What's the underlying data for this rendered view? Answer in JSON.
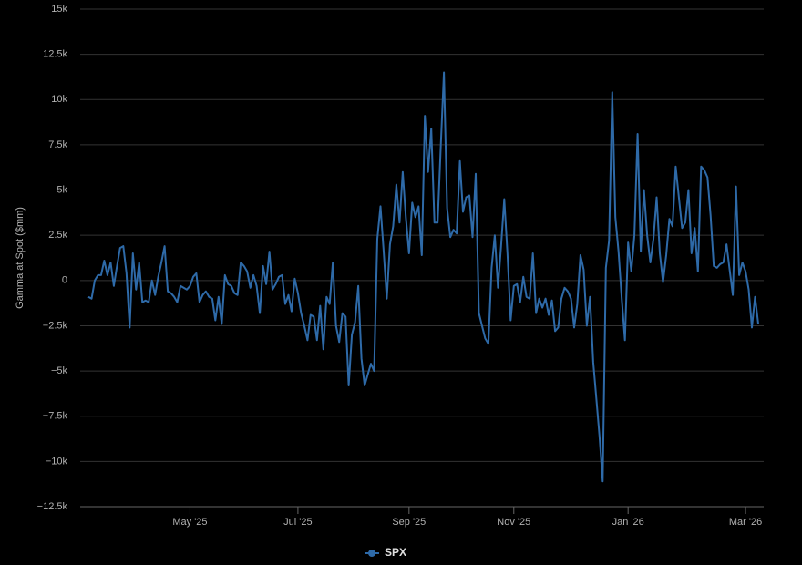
{
  "chart_data": {
    "type": "line",
    "y_label": "Gamma at Spot ($mm)",
    "categories": [
      null,
      null,
      null,
      null,
      null,
      null,
      null,
      null,
      null,
      null,
      null,
      null,
      null,
      null,
      null,
      null,
      null,
      null,
      null,
      null,
      null,
      null,
      null,
      null,
      null,
      null,
      null,
      null,
      null,
      null,
      null,
      null,
      "May '25",
      null,
      null,
      null,
      null,
      null,
      null,
      null,
      null,
      null,
      null,
      null,
      null,
      null,
      null,
      null,
      null,
      null,
      null,
      null,
      null,
      null,
      null,
      null,
      null,
      null,
      null,
      null,
      null,
      null,
      null,
      null,
      null,
      null,
      "Jul '25",
      null,
      null,
      null,
      null,
      null,
      null,
      null,
      null,
      null,
      null,
      null,
      null,
      null,
      null,
      null,
      null,
      null,
      null,
      null,
      null,
      null,
      null,
      null,
      null,
      null,
      null,
      null,
      null,
      null,
      null,
      null,
      null,
      null,
      null,
      "Sep '25",
      null,
      null,
      null,
      null,
      null,
      null,
      null,
      null,
      null,
      null,
      null,
      null,
      null,
      null,
      null,
      null,
      null,
      null,
      null,
      null,
      null,
      null,
      null,
      null,
      null,
      null,
      null,
      null,
      null,
      null,
      null,
      null,
      "Nov '25",
      null,
      null,
      null,
      null,
      null,
      null,
      null,
      null,
      null,
      null,
      null,
      null,
      null,
      null,
      null,
      null,
      null,
      null,
      null,
      null,
      null,
      null,
      null,
      null,
      null,
      null,
      null,
      null,
      null,
      null,
      null,
      null,
      null,
      null,
      null,
      "Jan '26",
      null,
      null,
      null,
      null,
      null,
      null,
      null,
      null,
      null,
      null,
      null,
      null,
      null,
      null,
      null,
      null,
      null,
      null,
      null,
      null,
      null,
      null,
      null,
      null,
      null,
      null,
      null,
      null,
      null,
      null,
      null,
      null,
      null,
      null,
      null,
      null,
      "Mar '26",
      null,
      null,
      null,
      null
    ],
    "series": [
      {
        "name": "SPX",
        "color": "#2e6aa8",
        "values": [
          -900,
          -1000,
          0,
          300,
          300,
          1100,
          300,
          1000,
          -300,
          800,
          1800,
          1900,
          400,
          -2600,
          1500,
          -500,
          1000,
          -1200,
          -1100,
          -1200,
          0,
          -800,
          200,
          1000,
          1900,
          -600,
          -700,
          -900,
          -1200,
          -300,
          -400,
          -500,
          -300,
          200,
          400,
          -1200,
          -800,
          -600,
          -900,
          -1000,
          -2200,
          -900,
          -2400,
          300,
          -200,
          -300,
          -700,
          -800,
          1000,
          800,
          500,
          -400,
          300,
          -300,
          -1800,
          800,
          -200,
          1600,
          -500,
          -200,
          200,
          300,
          -1300,
          -800,
          -1700,
          100,
          -700,
          -1800,
          -2500,
          -3300,
          -1900,
          -2000,
          -3300,
          -1400,
          -3800,
          -900,
          -1300,
          1000,
          -2500,
          -3400,
          -1800,
          -2000,
          -5800,
          -3000,
          -2300,
          -300,
          -4300,
          -5800,
          -5200,
          -4600,
          -5000,
          2300,
          4100,
          1600,
          -1000,
          2000,
          3000,
          5300,
          3200,
          6000,
          3500,
          1500,
          4300,
          3500,
          4100,
          1400,
          9100,
          6000,
          8400,
          3200,
          3200,
          7500,
          11500,
          4000,
          2400,
          2800,
          2600,
          6600,
          3800,
          4600,
          4700,
          2400,
          5900,
          -1800,
          -2500,
          -3200,
          -3500,
          700,
          2500,
          -400,
          1900,
          4500,
          1500,
          -2200,
          -300,
          -200,
          -1200,
          200,
          -900,
          -1000,
          1500,
          -1800,
          -1000,
          -1500,
          -1000,
          -1900,
          -1100,
          -2800,
          -2600,
          -1000,
          -400,
          -600,
          -1000,
          -2600,
          -1300,
          1400,
          600,
          -2500,
          -900,
          -4500,
          -6500,
          -8600,
          -11100,
          700,
          2200,
          10400,
          3500,
          1600,
          -1000,
          -3300,
          2100,
          500,
          2500,
          8100,
          1600,
          5000,
          2500,
          1000,
          2300,
          4600,
          1500,
          -100,
          1400,
          3400,
          3000,
          6300,
          4600,
          2900,
          3200,
          5000,
          1500,
          2900,
          500,
          6300,
          6100,
          5700,
          3600,
          800,
          700,
          900,
          1000,
          2000,
          600,
          -800,
          5200,
          300,
          1000,
          500,
          -500,
          -2600,
          -900,
          -2400
        ]
      }
    ],
    "ylim": [
      -12500,
      15000
    ],
    "yticks": [
      {
        "value": -12500,
        "label": "−12.5k"
      },
      {
        "value": -10000,
        "label": "−10k"
      },
      {
        "value": -7500,
        "label": "−7.5k"
      },
      {
        "value": -5000,
        "label": "−5k"
      },
      {
        "value": -2500,
        "label": "−2.5k"
      },
      0,
      {
        "value": 2500,
        "label": "2.5k"
      },
      {
        "value": 5000,
        "label": "5k"
      },
      {
        "value": 7500,
        "label": "7.5k"
      },
      {
        "value": 10000,
        "label": "10k"
      },
      {
        "value": 12500,
        "label": "12.5k"
      },
      {
        "value": 15000,
        "label": "15k"
      }
    ],
    "grid": true,
    "legend": "bottom"
  }
}
